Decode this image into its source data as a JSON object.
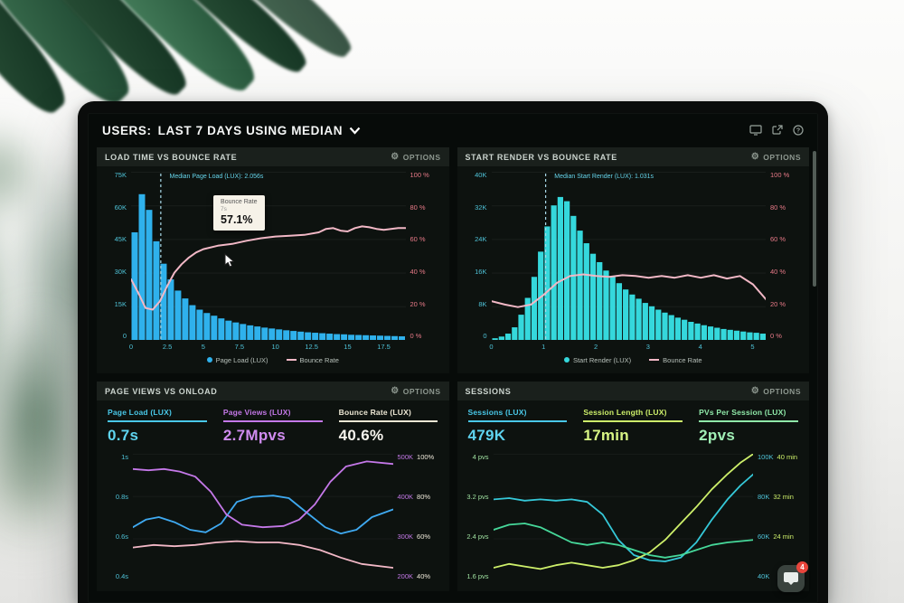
{
  "header": {
    "title_prefix": "USERS:",
    "title_rest": "LAST 7 DAYS USING MEDIAN"
  },
  "labels": {
    "options": "OPTIONS"
  },
  "icons": {
    "options_gear": "⚙",
    "header": [
      "display-icon",
      "share-icon",
      "help-icon"
    ],
    "intercom": "chat-bubble-icon"
  },
  "intercom": {
    "badge": "4"
  },
  "colors": {
    "background": "#070b09",
    "bar_blue": "#2fb1ec",
    "bar_teal": "#35d8dc",
    "line_pink": "#f2b8c6",
    "purple": "#c478e8",
    "cyan": "#35c3e8",
    "lime": "#cdef6a",
    "green": "#46d89a",
    "axis_red": "#e87a88",
    "axis_cyan": "#4fc3d8"
  },
  "chart_data": [
    {
      "type": "bar+line",
      "title": "LOAD TIME VS BOUNCE RATE",
      "x_domain": [
        0,
        19
      ],
      "y_max": 75,
      "left_ticks": [
        "75K",
        "60K",
        "45K",
        "30K",
        "15K",
        "0"
      ],
      "right_ticks": [
        "100 %",
        "80 %",
        "60 %",
        "40 %",
        "20 %",
        "0 %"
      ],
      "x_ticks": [
        "0",
        "2.5",
        "5",
        "7.5",
        "10",
        "12.5",
        "15",
        "17.5"
      ],
      "bar_series": {
        "name": "Page Load (LUX)",
        "unit": "K",
        "color": "#2fb1ec",
        "values": [
          48,
          65,
          58,
          44,
          34,
          27,
          22,
          18.5,
          15.5,
          13.5,
          12,
          10.8,
          9.6,
          8.6,
          7.8,
          7.1,
          6.5,
          6,
          5.5,
          5.1,
          4.7,
          4.3,
          4,
          3.7,
          3.4,
          3.2,
          3,
          2.8,
          2.6,
          2.5,
          2.3,
          2.2,
          2.1,
          2,
          1.9,
          1.8,
          1.7,
          1.6
        ]
      },
      "line_series": {
        "name": "Bounce Rate",
        "unit": "%",
        "color": "#f2b8c6",
        "points": [
          [
            0,
            36
          ],
          [
            0.5,
            28
          ],
          [
            1,
            19
          ],
          [
            1.5,
            18
          ],
          [
            2,
            23
          ],
          [
            2.5,
            32
          ],
          [
            3,
            40
          ],
          [
            3.5,
            45
          ],
          [
            4,
            49
          ],
          [
            4.5,
            52
          ],
          [
            5,
            54
          ],
          [
            6,
            56
          ],
          [
            7,
            57.1
          ],
          [
            8,
            59
          ],
          [
            9,
            60.5
          ],
          [
            10,
            61.5
          ],
          [
            11,
            62
          ],
          [
            12,
            62.5
          ],
          [
            13,
            64
          ],
          [
            13.5,
            66
          ],
          [
            14,
            66.5
          ],
          [
            14.5,
            65
          ],
          [
            15,
            64.5
          ],
          [
            15.5,
            66.5
          ],
          [
            16,
            67.5
          ],
          [
            16.5,
            67
          ],
          [
            17,
            66
          ],
          [
            17.5,
            65.5
          ],
          [
            18,
            66
          ],
          [
            18.5,
            66.5
          ],
          [
            19,
            66.5
          ]
        ]
      },
      "median": {
        "x": 2.056,
        "label": "Median Page Load (LUX): 2.056s"
      },
      "tooltip": {
        "lines": [
          "Bounce Rate",
          "7s",
          "57.1%"
        ]
      },
      "legend": [
        {
          "marker": "dot",
          "color": "#2fb1ec",
          "label": "Page Load (LUX)"
        },
        {
          "marker": "line",
          "color": "#f2b8c6",
          "label": "Bounce Rate"
        }
      ]
    },
    {
      "type": "bar+line",
      "title": "START RENDER VS BOUNCE RATE",
      "x_domain": [
        0,
        5.25
      ],
      "y_max": 40,
      "left_ticks": [
        "40K",
        "32K",
        "24K",
        "16K",
        "8K",
        "0"
      ],
      "right_ticks": [
        "100 %",
        "80 %",
        "60 %",
        "40 %",
        "20 %",
        "0 %"
      ],
      "x_ticks": [
        "0",
        "1",
        "2",
        "3",
        "4",
        "5"
      ],
      "bar_series": {
        "name": "Start Render (LUX)",
        "unit": "K",
        "color": "#35d8dc",
        "values": [
          0.4,
          0.8,
          1.5,
          3,
          6,
          10,
          15,
          21,
          27,
          32,
          34,
          33,
          29.5,
          26,
          23,
          20.5,
          18.5,
          16.5,
          15,
          13.5,
          12,
          10.8,
          9.8,
          8.8,
          8,
          7.2,
          6.5,
          5.9,
          5.3,
          4.8,
          4.3,
          3.9,
          3.5,
          3.2,
          2.9,
          2.6,
          2.4,
          2.2,
          2,
          1.8,
          1.7,
          1.5
        ]
      },
      "line_series": {
        "name": "Bounce Rate",
        "unit": "%",
        "color": "#f2b8c6",
        "points": [
          [
            0,
            23
          ],
          [
            0.25,
            21
          ],
          [
            0.5,
            19.5
          ],
          [
            0.75,
            21
          ],
          [
            1,
            27
          ],
          [
            1.25,
            34
          ],
          [
            1.5,
            38
          ],
          [
            1.75,
            39
          ],
          [
            2,
            38
          ],
          [
            2.25,
            37.5
          ],
          [
            2.5,
            38.5
          ],
          [
            2.75,
            38
          ],
          [
            3,
            37
          ],
          [
            3.25,
            38
          ],
          [
            3.5,
            37
          ],
          [
            3.75,
            38.5
          ],
          [
            4,
            37
          ],
          [
            4.25,
            38.5
          ],
          [
            4.5,
            36.5
          ],
          [
            4.75,
            38
          ],
          [
            5,
            33
          ],
          [
            5.25,
            24
          ]
        ]
      },
      "median": {
        "x": 1.031,
        "label": "Median Start Render (LUX): 1.031s"
      },
      "legend": [
        {
          "marker": "dot",
          "color": "#35d8dc",
          "label": "Start Render (LUX)"
        },
        {
          "marker": "line",
          "color": "#f2b8c6",
          "label": "Bounce Rate"
        }
      ]
    },
    {
      "type": "line",
      "title": "PAGE VIEWS VS ONLOAD",
      "metrics": [
        {
          "label": "Page Load (LUX)",
          "value": "0.7s",
          "color": "#49c8e8"
        },
        {
          "label": "Page Views (LUX)",
          "value": "2.7Mpvs",
          "color": "#c478e8"
        },
        {
          "label": "Bounce Rate (LUX)",
          "value": "40.6%",
          "color": "#f7f5ee"
        }
      ],
      "left_ticks": [
        "1s",
        "0.8s",
        "0.6s",
        "0.4s"
      ],
      "right_ticks": [
        {
          "k": "500K",
          "m": "100%"
        },
        {
          "k": "400K",
          "m": "80%"
        },
        {
          "k": "300K",
          "m": "60%"
        },
        {
          "k": "200K",
          "m": "40%"
        }
      ],
      "series": [
        {
          "name": "Page Load (LUX)",
          "color": "#3fa9f0",
          "points": [
            [
              0,
              0.58
            ],
            [
              0.05,
              0.52
            ],
            [
              0.1,
              0.5
            ],
            [
              0.16,
              0.54
            ],
            [
              0.22,
              0.6
            ],
            [
              0.28,
              0.62
            ],
            [
              0.34,
              0.55
            ],
            [
              0.4,
              0.38
            ],
            [
              0.46,
              0.34
            ],
            [
              0.54,
              0.33
            ],
            [
              0.6,
              0.35
            ],
            [
              0.66,
              0.45
            ],
            [
              0.74,
              0.58
            ],
            [
              0.8,
              0.63
            ],
            [
              0.86,
              0.6
            ],
            [
              0.92,
              0.5
            ],
            [
              1,
              0.44
            ]
          ]
        },
        {
          "name": "Page Views (LUX)",
          "color": "#c478e8",
          "points": [
            [
              0,
              0.12
            ],
            [
              0.06,
              0.13
            ],
            [
              0.12,
              0.12
            ],
            [
              0.18,
              0.14
            ],
            [
              0.24,
              0.18
            ],
            [
              0.3,
              0.3
            ],
            [
              0.36,
              0.48
            ],
            [
              0.42,
              0.56
            ],
            [
              0.5,
              0.58
            ],
            [
              0.58,
              0.57
            ],
            [
              0.64,
              0.52
            ],
            [
              0.7,
              0.4
            ],
            [
              0.76,
              0.22
            ],
            [
              0.82,
              0.1
            ],
            [
              0.9,
              0.06
            ],
            [
              1,
              0.08
            ]
          ]
        },
        {
          "name": "Bounce Rate (LUX)",
          "color": "#f2b8c6",
          "points": [
            [
              0,
              0.74
            ],
            [
              0.08,
              0.72
            ],
            [
              0.16,
              0.73
            ],
            [
              0.24,
              0.72
            ],
            [
              0.32,
              0.7
            ],
            [
              0.4,
              0.69
            ],
            [
              0.48,
              0.7
            ],
            [
              0.56,
              0.7
            ],
            [
              0.64,
              0.72
            ],
            [
              0.72,
              0.76
            ],
            [
              0.8,
              0.82
            ],
            [
              0.88,
              0.87
            ],
            [
              1,
              0.9
            ]
          ]
        }
      ]
    },
    {
      "type": "line",
      "title": "SESSIONS",
      "metrics": [
        {
          "label": "Sessions (LUX)",
          "value": "479K",
          "color": "#49c8e8"
        },
        {
          "label": "Session Length (LUX)",
          "value": "17min",
          "color": "#cdef6a"
        },
        {
          "label": "PVs Per Session (LUX)",
          "value": "2pvs",
          "color": "#8fe8a8"
        }
      ],
      "left_ticks": [
        "4 pvs",
        "3.2 pvs",
        "2.4 pvs",
        "1.6 pvs"
      ],
      "right_ticks": [
        {
          "k": "100K",
          "m": "40 min"
        },
        {
          "k": "80K",
          "m": "32 min"
        },
        {
          "k": "60K",
          "m": "24 min"
        },
        {
          "k": "40K",
          "m": ""
        }
      ],
      "series": [
        {
          "name": "Sessions (LUX)",
          "color": "#35c8d8",
          "points": [
            [
              0,
              0.36
            ],
            [
              0.06,
              0.35
            ],
            [
              0.12,
              0.37
            ],
            [
              0.18,
              0.36
            ],
            [
              0.24,
              0.37
            ],
            [
              0.3,
              0.36
            ],
            [
              0.36,
              0.38
            ],
            [
              0.42,
              0.48
            ],
            [
              0.48,
              0.68
            ],
            [
              0.54,
              0.8
            ],
            [
              0.6,
              0.84
            ],
            [
              0.66,
              0.85
            ],
            [
              0.72,
              0.82
            ],
            [
              0.78,
              0.7
            ],
            [
              0.84,
              0.52
            ],
            [
              0.9,
              0.36
            ],
            [
              0.95,
              0.25
            ],
            [
              1,
              0.16
            ]
          ]
        },
        {
          "name": "Session Length (LUX)",
          "color": "#cdef6a",
          "points": [
            [
              0,
              0.9
            ],
            [
              0.06,
              0.87
            ],
            [
              0.12,
              0.89
            ],
            [
              0.18,
              0.91
            ],
            [
              0.24,
              0.88
            ],
            [
              0.3,
              0.86
            ],
            [
              0.36,
              0.88
            ],
            [
              0.42,
              0.9
            ],
            [
              0.48,
              0.88
            ],
            [
              0.54,
              0.84
            ],
            [
              0.6,
              0.78
            ],
            [
              0.66,
              0.68
            ],
            [
              0.72,
              0.55
            ],
            [
              0.78,
              0.42
            ],
            [
              0.84,
              0.28
            ],
            [
              0.9,
              0.16
            ],
            [
              0.95,
              0.07
            ],
            [
              1,
              0.0
            ]
          ]
        },
        {
          "name": "PVs Per Session (LUX)",
          "color": "#46d89a",
          "points": [
            [
              0,
              0.6
            ],
            [
              0.06,
              0.56
            ],
            [
              0.12,
              0.55
            ],
            [
              0.18,
              0.58
            ],
            [
              0.24,
              0.64
            ],
            [
              0.3,
              0.7
            ],
            [
              0.36,
              0.72
            ],
            [
              0.42,
              0.7
            ],
            [
              0.48,
              0.72
            ],
            [
              0.54,
              0.76
            ],
            [
              0.6,
              0.8
            ],
            [
              0.66,
              0.82
            ],
            [
              0.72,
              0.8
            ],
            [
              0.78,
              0.76
            ],
            [
              0.84,
              0.72
            ],
            [
              0.9,
              0.7
            ],
            [
              0.95,
              0.69
            ],
            [
              1,
              0.68
            ]
          ]
        }
      ]
    }
  ]
}
